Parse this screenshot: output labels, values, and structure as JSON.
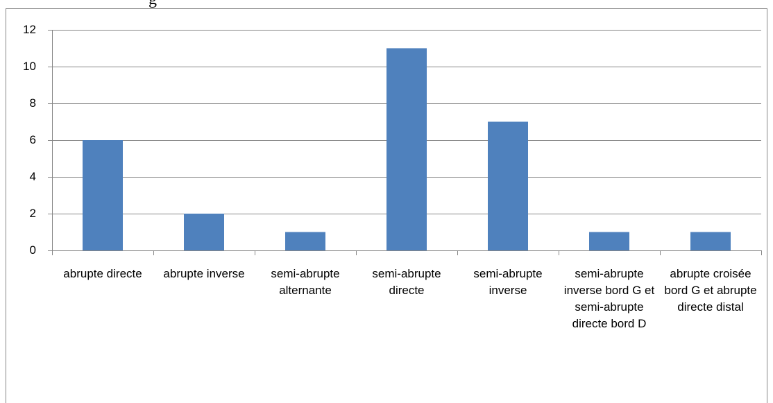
{
  "caption": "g",
  "chart_data": {
    "type": "bar",
    "categories": [
      "abrupte directe",
      "abrupte inverse",
      "semi-abrupte alternante",
      "semi-abrupte directe",
      "semi-abrupte inverse",
      "semi-abrupte inverse bord G et semi-abrupte directe bord D",
      "abrupte croisée bord G et abrupte directe distal"
    ],
    "values": [
      6,
      2,
      1,
      11,
      7,
      1,
      1
    ],
    "color": "#4f81bd",
    "ylim": [
      0,
      12
    ],
    "yticks": [
      0,
      2,
      4,
      6,
      8,
      10,
      12
    ],
    "grid": true
  }
}
